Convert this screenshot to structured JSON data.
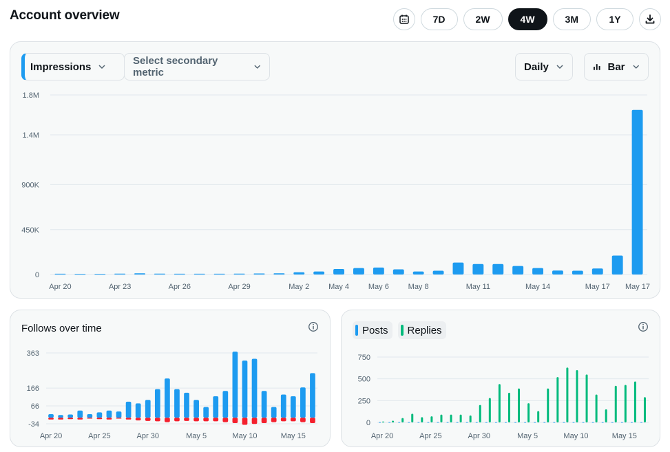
{
  "header": {
    "title": "Account overview",
    "calendar_icon": "calendar-icon",
    "download_icon": "download-icon",
    "ranges": [
      "7D",
      "2W",
      "4W",
      "3M",
      "1Y"
    ],
    "active_range": "4W"
  },
  "controls": {
    "primary_metric": "Impressions",
    "secondary_metric_placeholder": "Select secondary metric",
    "interval": "Daily",
    "chart_type": "Bar",
    "bar_chart_icon": "bar-chart-icon"
  },
  "colors": {
    "primary": "#1d9bf0",
    "negative": "#f4212e",
    "replies": "#00ba7c",
    "grid": "#e1e8ed",
    "axis_text": "#536471"
  },
  "follows": {
    "title": "Follows over time",
    "info_icon": "info-icon"
  },
  "engagement": {
    "legend": [
      "Posts",
      "Replies"
    ],
    "info_icon": "info-icon"
  },
  "chart_data": [
    {
      "type": "bar",
      "series": [
        {
          "values": [
            8000,
            6000,
            7000,
            9000,
            12000,
            9000,
            8000,
            8000,
            8000,
            9000,
            10000,
            12000,
            22000,
            30000,
            55000,
            65000,
            70000,
            52000,
            30000,
            38000,
            120000,
            105000,
            105000,
            85000,
            65000,
            40000,
            38000,
            60000,
            190000,
            1650000
          ]
        }
      ],
      "x_tick_labels": [
        "Apr 20",
        "Apr 23",
        "Apr 26",
        "Apr 29",
        "May 2",
        "May 4",
        "May 6",
        "May 8",
        "May 11",
        "May 14",
        "May 17"
      ],
      "x_tick_days": [
        0,
        3,
        6,
        9,
        12,
        14,
        16,
        18,
        21,
        24,
        27
      ],
      "x_last_label": "May 17",
      "y_ticks": [
        0,
        450000,
        900000,
        1400000,
        1800000
      ],
      "y_tick_labels": [
        "0",
        "450K",
        "900K",
        "1.4M",
        "1.8M"
      ],
      "ylim": [
        0,
        1800000
      ],
      "grid": true
    },
    {
      "type": "bar",
      "series": [
        {
          "values": [
            20,
            15,
            18,
            40,
            20,
            30,
            40,
            35,
            90,
            80,
            100,
            160,
            220,
            160,
            140,
            100,
            60,
            120,
            150,
            370,
            320,
            330,
            150,
            60,
            130,
            120,
            170,
            250
          ]
        },
        {
          "values": [
            -10,
            -10,
            -8,
            -10,
            -5,
            -8,
            -10,
            -5,
            -10,
            -15,
            -18,
            -20,
            -25,
            -20,
            -18,
            -20,
            -20,
            -20,
            -25,
            -30,
            -40,
            -35,
            -30,
            -25,
            -20,
            -20,
            -25,
            -30
          ]
        }
      ],
      "x_tick_labels": [
        "Apr 20",
        "Apr 25",
        "Apr 30",
        "May 5",
        "May 10",
        "May 15"
      ],
      "y_ticks": [
        -34,
        66,
        166,
        363
      ],
      "y_tick_labels": [
        "-34",
        "66",
        "166",
        "363"
      ],
      "ylim": [
        -34,
        363
      ],
      "grid": true
    },
    {
      "type": "bar",
      "series": [
        {
          "name": "Posts",
          "values": [
            4,
            4,
            4,
            4,
            4,
            4,
            4,
            4,
            4,
            4,
            4,
            4,
            4,
            4,
            4,
            4,
            4,
            4,
            4,
            4,
            4,
            4,
            4,
            4,
            4,
            4,
            4,
            4
          ]
        },
        {
          "name": "Replies",
          "values": [
            10,
            20,
            50,
            100,
            60,
            70,
            90,
            90,
            90,
            80,
            200,
            280,
            440,
            340,
            390,
            220,
            130,
            390,
            520,
            630,
            600,
            550,
            320,
            150,
            420,
            430,
            470,
            290
          ]
        }
      ],
      "x_tick_labels": [
        "Apr 20",
        "Apr 25",
        "Apr 30",
        "May 5",
        "May 10",
        "May 15"
      ],
      "y_ticks": [
        0,
        250,
        500,
        750
      ],
      "y_tick_labels": [
        "0",
        "250",
        "500",
        "750"
      ],
      "ylim": [
        0,
        750
      ],
      "grid": true
    }
  ]
}
